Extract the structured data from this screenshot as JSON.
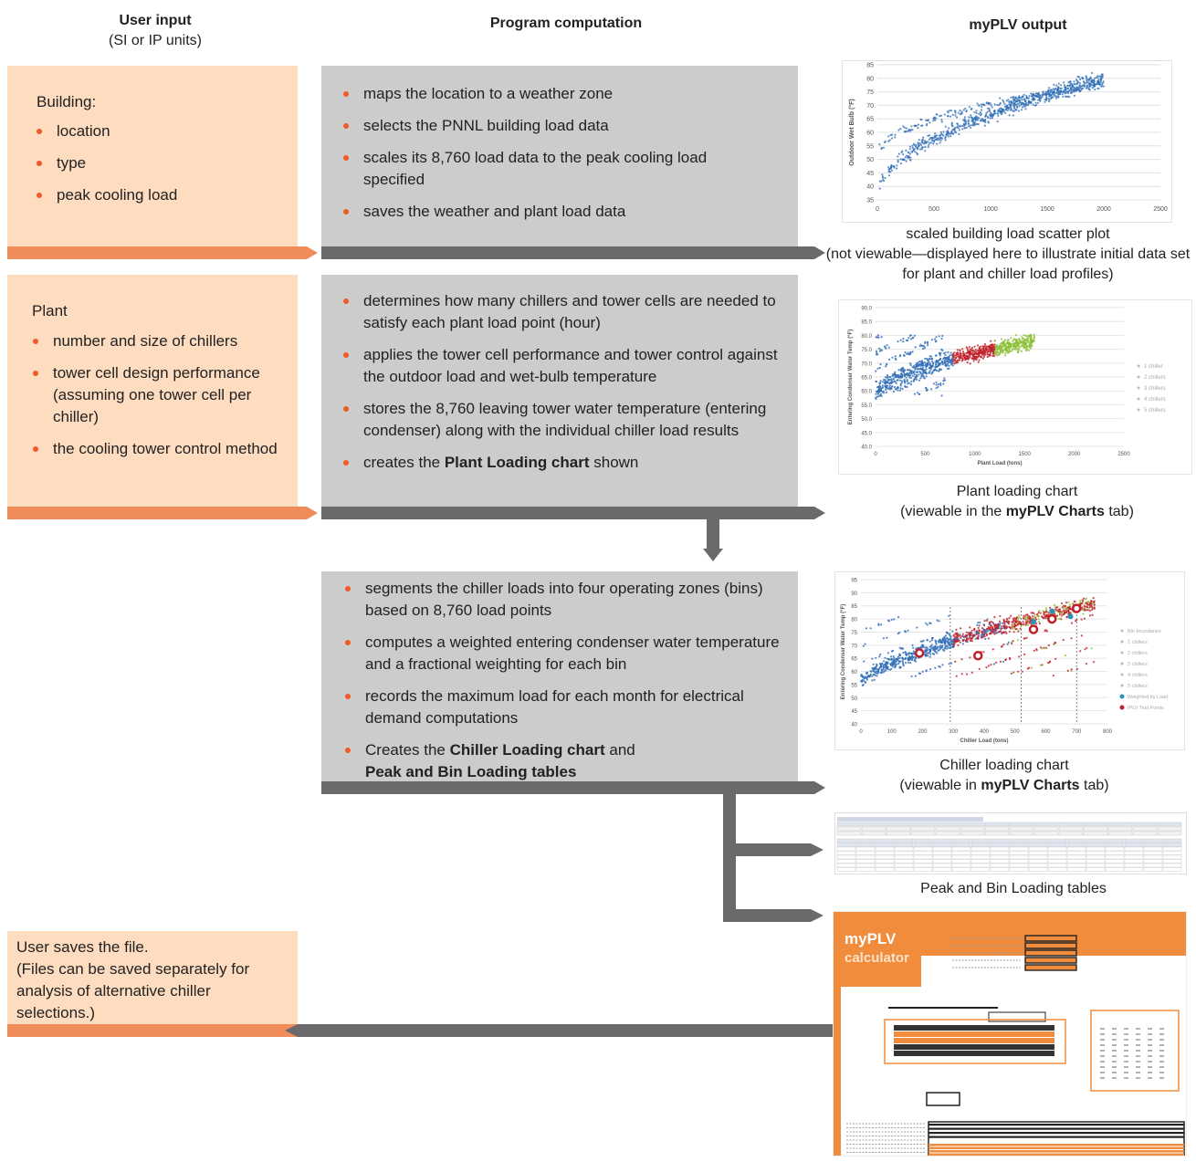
{
  "headers": {
    "user_input": "User input",
    "user_input_sub": "(SI or IP units)",
    "program": "Program computation",
    "output": "myPLV output"
  },
  "building": {
    "title": "Building:",
    "items": [
      "location",
      "type",
      "peak cooling load"
    ]
  },
  "plant": {
    "title": "Plant",
    "items": [
      "number and size of chillers",
      "tower cell design performance (assuming one tower cell per chiller)",
      "the cooling tower control method"
    ]
  },
  "save": {
    "text": "User saves the file.",
    "sub": "(Files can be saved separately for analysis of alternative chiller selections.)"
  },
  "comp1": {
    "items": [
      "maps the location to a weather zone",
      "selects the PNNL building load data",
      "scales its 8,760 load data to the peak cooling load specified",
      "saves the weather and plant load data"
    ]
  },
  "comp2": {
    "items": [
      "determines how many chillers and tower cells are needed to satisfy each plant load point (hour)",
      "applies the tower cell performance and tower control against the outdoor load and wet-bulb temperature",
      "stores the 8,760 leaving tower water temperature (entering condenser) along with the individual chiller load results"
    ],
    "last_pre": "creates the ",
    "last_bold": "Plant Loading chart",
    "last_post": " shown"
  },
  "comp3": {
    "items": [
      "segments the chiller loads into four operating zones (bins) based on 8,760 load points",
      "computes a weighted entering condenser water temperature and a fractional weighting for each bin",
      "records the maximum load for each month for electrical demand computations"
    ],
    "last_pre": "Creates the ",
    "last_bold1": "Chiller Loading chart",
    "last_mid": " and",
    "last_bold2": "Peak and Bin Loading tables"
  },
  "outputs": {
    "scatter_caption": "scaled building load scatter plot",
    "scatter_note": "(not viewable—displayed here to illustrate initial data set for plant and chiller load profiles)",
    "plant_caption": "Plant loading chart",
    "plant_note_pre": "(viewable in the ",
    "plant_note_bold": "myPLV Charts",
    "plant_note_post": " tab)",
    "chiller_caption": "Chiller loading chart",
    "chiller_note_pre": "(viewable in ",
    "chiller_note_bold": "myPLV Charts",
    "chiller_note_post": " tab)",
    "tables_caption": "Peak and Bin Loading tables",
    "calc_logo": "myPLV",
    "calc_logo_sub": "calculator"
  },
  "charts": {
    "scatter": {
      "ylabel": "Outdoor Wet Bulb (°F)",
      "yticks": [
        "85",
        "80",
        "75",
        "70",
        "65",
        "60",
        "55",
        "50",
        "45",
        "40",
        "35"
      ],
      "xticks": [
        "0",
        "500",
        "1000",
        "1500",
        "2000",
        "2500"
      ]
    },
    "plant": {
      "ylabel": "Entering Condenser Water Temp (°F)",
      "xlabel": "Plant Load (tons)",
      "yticks": [
        "90.0",
        "85.0",
        "80.0",
        "75.0",
        "70.0",
        "65.0",
        "60.0",
        "55.0",
        "50.0",
        "45.0",
        "40.0"
      ],
      "xticks": [
        "0",
        "500",
        "1000",
        "1500",
        "2000",
        "2500"
      ],
      "legend": [
        "1 chiller",
        "2 chillers",
        "3 chillers",
        "4 chillers",
        "5 chillers"
      ]
    },
    "chiller": {
      "ylabel": "Entering Condenser Water Temp (°F)",
      "xlabel": "Chiller Load (tons)",
      "yticks": [
        "95",
        "90",
        "85",
        "80",
        "75",
        "70",
        "65",
        "60",
        "55",
        "50",
        "45",
        "40"
      ],
      "xticks": [
        "0",
        "100",
        "200",
        "300",
        "400",
        "500",
        "600",
        "700",
        "800"
      ],
      "legend": [
        "Bin boundaries",
        "1 chillers",
        "2 chillers",
        "3 chillers",
        "4 chillers",
        "5 chillers",
        "Weighted by Load",
        "IPLV Test Points"
      ]
    }
  },
  "colors": {
    "peach": "#fddcc0",
    "gray": "#cccccc",
    "orange": "#f08c5a",
    "dark": "#6a6a6a",
    "bullet": "#f05a28",
    "blue": "#2f6db5",
    "red": "#c0202a",
    "green": "#8dbf3a"
  }
}
